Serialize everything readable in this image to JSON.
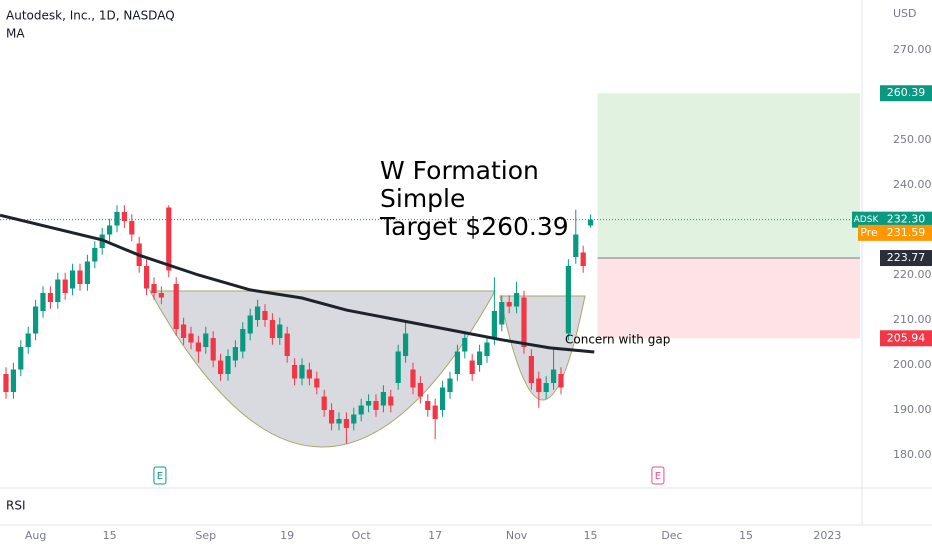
{
  "header": {
    "title": "Autodesk, Inc., 1D, NASDAQ",
    "indicator": "MA",
    "currency": "USD",
    "lower_pane": "RSI"
  },
  "chart_data": {
    "type": "candlestick",
    "x": [
      0,
      1,
      2,
      3,
      4,
      5,
      6,
      7,
      8,
      9,
      10,
      11,
      12,
      13,
      14,
      15,
      16,
      17,
      18,
      19,
      20,
      21,
      22,
      23,
      24,
      25,
      26,
      27,
      28,
      29,
      30,
      31,
      32,
      33,
      34,
      35,
      36,
      37,
      38,
      39,
      40,
      41,
      42,
      43,
      44,
      45,
      46,
      47,
      48,
      49,
      50,
      51,
      52,
      53,
      54,
      55,
      56,
      57,
      58,
      59,
      60,
      61,
      62,
      63,
      64,
      65,
      66,
      67,
      68,
      69,
      70,
      71,
      72,
      73,
      74,
      75,
      76,
      77,
      78,
      79
    ],
    "open": [
      198,
      194,
      199,
      204,
      207,
      212,
      216,
      214,
      219,
      217,
      221,
      218,
      223,
      226,
      229,
      231,
      234,
      232,
      227,
      222,
      218,
      216,
      235,
      218,
      209,
      207,
      205,
      204,
      206,
      201,
      198,
      201,
      203,
      207,
      210,
      212,
      210,
      206,
      207,
      200,
      197,
      199,
      197,
      193,
      190,
      187,
      188,
      187,
      189,
      191,
      192,
      191,
      193,
      196,
      202,
      199,
      196,
      192,
      191,
      190,
      194,
      198,
      203,
      201,
      200,
      202,
      206,
      209,
      214,
      213,
      215,
      202,
      197,
      194,
      196,
      198,
      207,
      224,
      225,
      231
    ],
    "high": [
      199.5,
      200.5,
      205.5,
      208.5,
      214.5,
      217.5,
      217.5,
      220.5,
      220.5,
      222.5,
      222.5,
      224.5,
      227.5,
      230.5,
      232.5,
      235.5,
      235.5,
      233.5,
      228.5,
      223.5,
      219.5,
      217.5,
      235.5,
      219.5,
      210.5,
      208.5,
      206.5,
      208.5,
      207.5,
      202.5,
      203.5,
      205.5,
      209.5,
      212.5,
      214.5,
      213.5,
      211.5,
      210.5,
      208.5,
      201.5,
      201.5,
      200.5,
      198.5,
      194.5,
      191.5,
      189.5,
      189.5,
      190.5,
      192.5,
      193.5,
      193.5,
      195.5,
      194.5,
      204.5,
      209.5,
      200.5,
      197.5,
      193.5,
      192.5,
      196.5,
      198.5,
      204.5,
      207.5,
      202.5,
      204.5,
      206.5,
      219.5,
      215.5,
      215.5,
      218.5,
      216.5,
      203.5,
      198.5,
      197.5,
      203.5,
      199.5,
      223.5,
      234.5,
      226.5,
      233.5
    ],
    "low": [
      192.5,
      192.5,
      197.5,
      202.5,
      205.5,
      210.5,
      212.5,
      212.5,
      214.5,
      215.5,
      216.5,
      216.5,
      221.5,
      224.5,
      227.5,
      229.5,
      230.5,
      227.5,
      220.5,
      215.5,
      214.5,
      213.5,
      219.5,
      206.5,
      204.5,
      203.5,
      200.5,
      202.5,
      199.5,
      196.5,
      196.5,
      199.5,
      201.5,
      205.5,
      208.5,
      208.5,
      204.5,
      204.5,
      200.5,
      195.5,
      195.5,
      195.5,
      193.5,
      188.5,
      185.5,
      185.5,
      182.5,
      185.5,
      187.5,
      189.5,
      188.5,
      189.5,
      189.5,
      194.5,
      200.5,
      193.5,
      191.5,
      188.5,
      183.5,
      188.5,
      192.5,
      196.5,
      201.5,
      196.5,
      198.5,
      200.5,
      204.5,
      207.5,
      211.5,
      211.5,
      202.5,
      194.5,
      190.5,
      192.5,
      194.5,
      193.5,
      205.5,
      222.5,
      220.5,
      230.5
    ],
    "close": [
      194,
      199,
      204,
      207,
      213,
      216,
      214,
      219,
      216,
      221,
      218,
      223,
      226,
      229,
      231,
      234,
      232,
      229,
      222,
      217,
      216,
      215,
      221,
      208,
      206,
      205,
      203,
      207,
      201,
      198,
      202,
      204,
      208,
      211,
      213,
      210,
      206,
      209,
      202,
      197,
      200,
      197,
      195,
      190,
      187,
      188,
      186,
      189,
      191,
      192,
      190,
      194,
      191,
      203,
      207,
      195,
      193,
      190,
      188,
      195,
      197,
      203,
      206,
      198,
      203,
      205,
      212,
      214,
      213,
      216,
      204,
      196,
      194,
      196,
      199,
      195,
      222,
      229,
      222,
      232.3
    ],
    "up_color": "#089981",
    "down_color": "#f23645",
    "grid": false,
    "xlim": [
      -0.81,
      115.68
    ],
    "xticks": [
      {
        "value": 4,
        "label": "Aug"
      },
      {
        "value": 14,
        "label": "15"
      },
      {
        "value": 27,
        "label": "Sep"
      },
      {
        "value": 38,
        "label": "19"
      },
      {
        "value": 48,
        "label": "Oct"
      },
      {
        "value": 58,
        "label": "17"
      },
      {
        "value": 69,
        "label": "Nov"
      },
      {
        "value": 79,
        "label": "15"
      },
      {
        "value": 90,
        "label": "Dec"
      },
      {
        "value": 100,
        "label": "15"
      },
      {
        "value": 111,
        "label": "2023"
      }
    ],
    "ylim": [
      172.67,
      281.11
    ],
    "yticks": [
      {
        "value": 180,
        "label": "180.00"
      },
      {
        "value": 190,
        "label": "190.00"
      },
      {
        "value": 200,
        "label": "200.00"
      },
      {
        "value": 210,
        "label": "210.00"
      },
      {
        "value": 220,
        "label": "220.00"
      },
      {
        "value": 230,
        "label": "230.00"
      },
      {
        "value": 240,
        "label": "240.00"
      },
      {
        "value": 250,
        "label": "250.00"
      },
      {
        "value": 260,
        "label": "260.00"
      },
      {
        "value": 270,
        "label": "270.00"
      }
    ],
    "moving_average": {
      "color": "#1e222d",
      "x": [
        -0.8,
        13,
        18,
        26,
        33,
        40,
        46,
        53,
        60,
        67,
        73.5,
        79.5
      ],
      "values": [
        233.3,
        227.8,
        224.4,
        220,
        216.7,
        214.9,
        212.2,
        210,
        207.8,
        205.6,
        203.8,
        202.9
      ]
    },
    "position": {
      "target": 260.39,
      "entry": 223.77,
      "stop": 205.94
    },
    "last_price": {
      "symbol": "ADSK",
      "value": 232.3,
      "label": "232.30"
    },
    "premarket": {
      "label": "Pre",
      "value": 231.59
    },
    "earnings": [
      {
        "x": 20.8,
        "label": "E"
      },
      {
        "x": 88.1,
        "label": "E"
      }
    ],
    "annotations": [
      "W Formation",
      "Simple",
      "Target $260.39",
      "Concern with gap"
    ]
  }
}
